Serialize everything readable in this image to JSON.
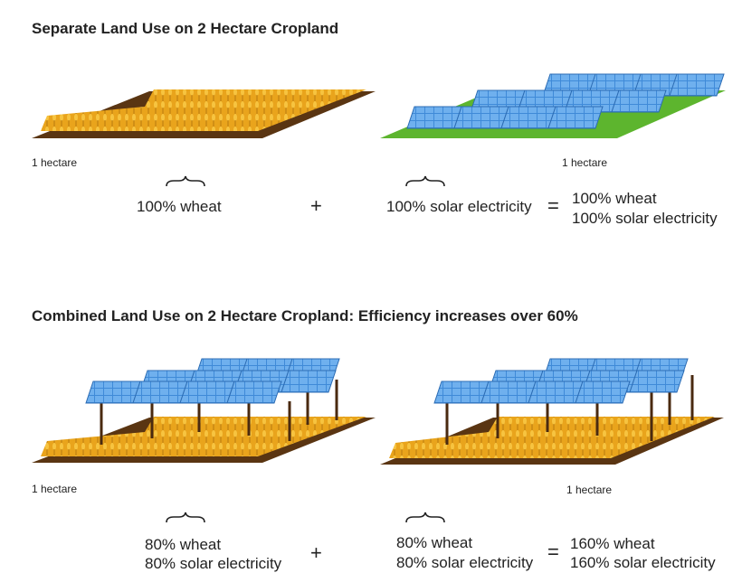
{
  "sections": [
    {
      "title": "Separate Land Use on 2 Hectare Cropland",
      "panels": [
        {
          "area": "1 hectare",
          "yield": [
            "100% wheat"
          ]
        },
        {
          "area": "1 hectare",
          "yield": [
            "100% solar electricity"
          ]
        }
      ],
      "plus": "+",
      "equals": "=",
      "result": [
        "100% wheat",
        "100% solar electricity"
      ]
    },
    {
      "title": "Combined Land Use on 2 Hectare Cropland: Efficiency increases over 60%",
      "panels": [
        {
          "area": "1 hectare",
          "yield": [
            "80% wheat",
            "80% solar electricity"
          ]
        },
        {
          "area": "1 hectare",
          "yield": [
            "80% wheat",
            "80% solar electricity"
          ]
        }
      ],
      "plus": "+",
      "equals": "=",
      "result": [
        "160% wheat",
        "160% solar electricity"
      ]
    }
  ]
}
